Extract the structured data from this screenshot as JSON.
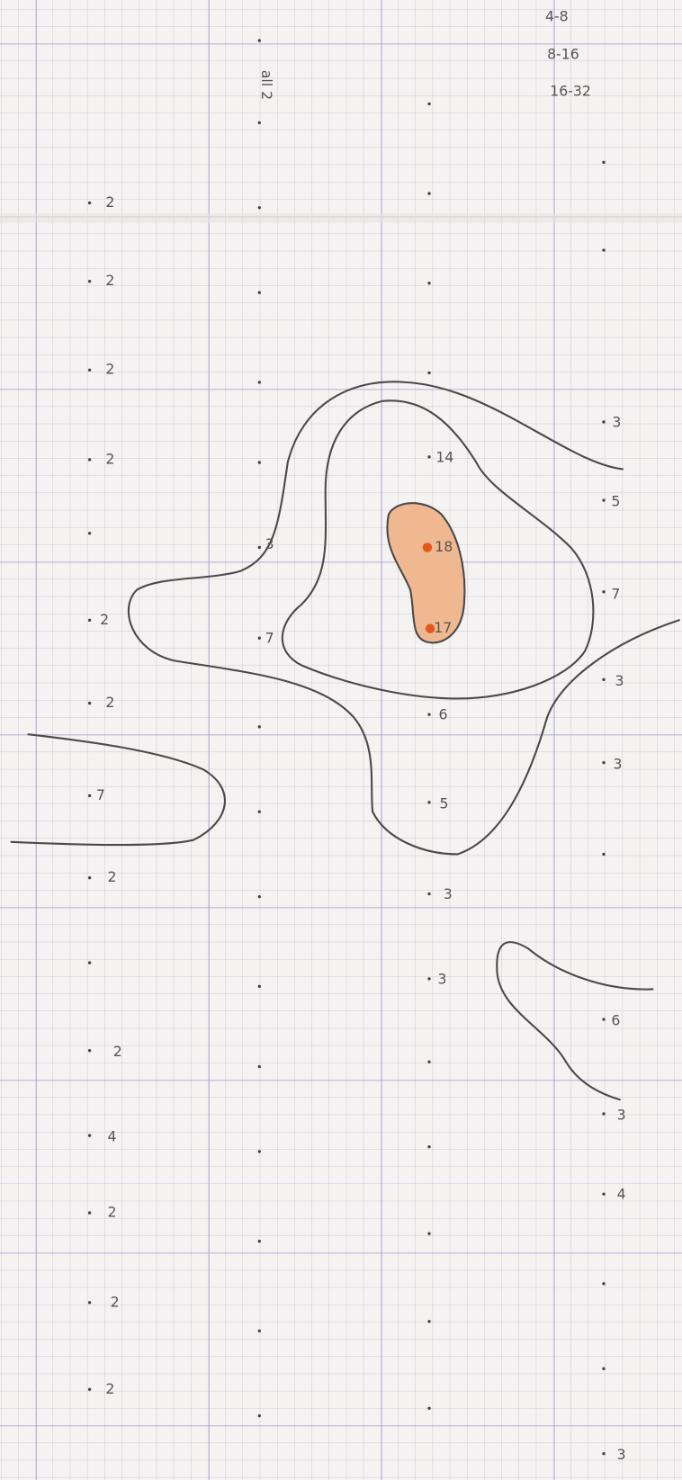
{
  "legend": [
    "4-8",
    "8-16",
    "16-32"
  ],
  "note": "all 2",
  "points": [
    "2",
    "2",
    "2",
    "2",
    "2",
    "2",
    "7",
    "2",
    "2",
    "4",
    "2",
    "2",
    "2",
    "3",
    "7",
    "14",
    "18",
    "17",
    "6",
    "5",
    "3",
    "3",
    "3",
    "5",
    "7",
    "3",
    "3",
    "6",
    "3",
    "4",
    "3"
  ]
}
